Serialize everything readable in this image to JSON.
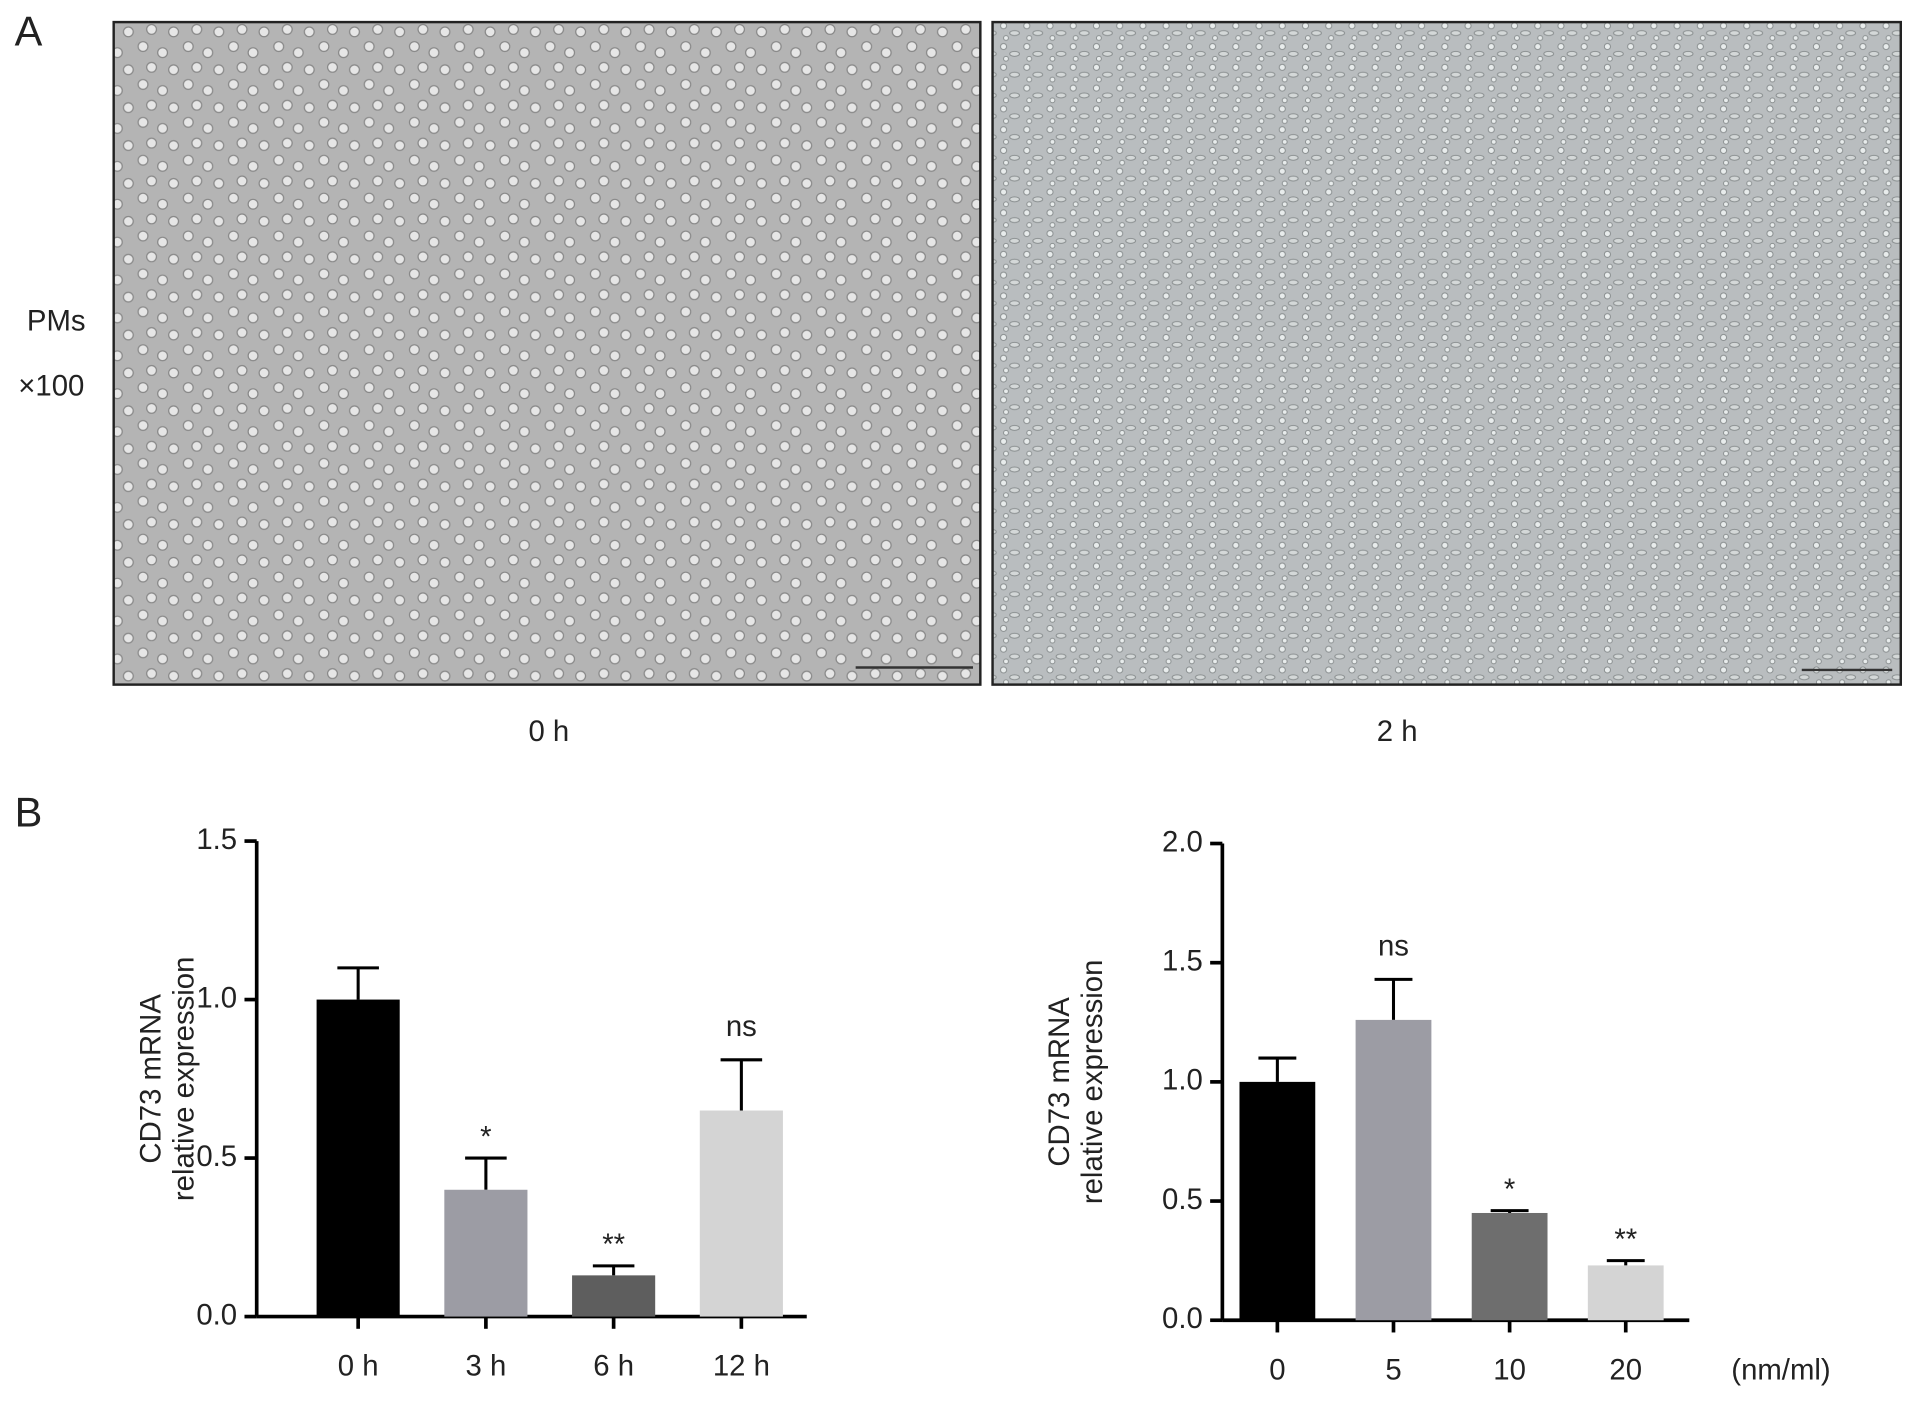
{
  "panel_a": {
    "label": "A",
    "row_label": [
      "PMs",
      "×100"
    ],
    "images": [
      {
        "caption": "0 h"
      },
      {
        "caption": "2 h"
      }
    ]
  },
  "panel_b": {
    "label": "B"
  },
  "chart_data": [
    {
      "type": "bar",
      "ylabel": [
        "CD73 mRNA",
        "relative expression"
      ],
      "categories": [
        "0 h",
        "3 h",
        "6 h",
        "12 h"
      ],
      "values": [
        1.0,
        0.4,
        0.13,
        0.65
      ],
      "errors": [
        0.1,
        0.1,
        0.03,
        0.16
      ],
      "annotations": [
        null,
        "*",
        "**",
        "ns"
      ],
      "colors": [
        "#000000",
        "#9c9ca4",
        "#5e5e5e",
        "#d4d4d4"
      ],
      "ylim": [
        0,
        1.5
      ],
      "yticks": [
        {
          "value": 0,
          "label": "0.0"
        },
        0.5,
        {
          "value": 1,
          "label": "1.0"
        },
        1.5
      ]
    },
    {
      "type": "bar",
      "ylabel": [
        "CD73 mRNA",
        "relative expression"
      ],
      "xlabel": "(nm/ml)",
      "categories": [
        "0",
        "5",
        "10",
        "20"
      ],
      "values": [
        1.0,
        1.26,
        0.45,
        0.23
      ],
      "errors": [
        0.1,
        0.17,
        0.01,
        0.02
      ],
      "annotations": [
        null,
        "ns",
        "*",
        "**"
      ],
      "colors": [
        "#000000",
        "#9c9ca4",
        "#6e6e6e",
        "#d4d4d4"
      ],
      "ylim": [
        0,
        2
      ],
      "yticks": [
        {
          "value": 0,
          "label": "0.0"
        },
        0.5,
        {
          "value": 1,
          "label": "1.0"
        },
        1.5,
        {
          "value": 2,
          "label": "2.0"
        }
      ]
    }
  ]
}
